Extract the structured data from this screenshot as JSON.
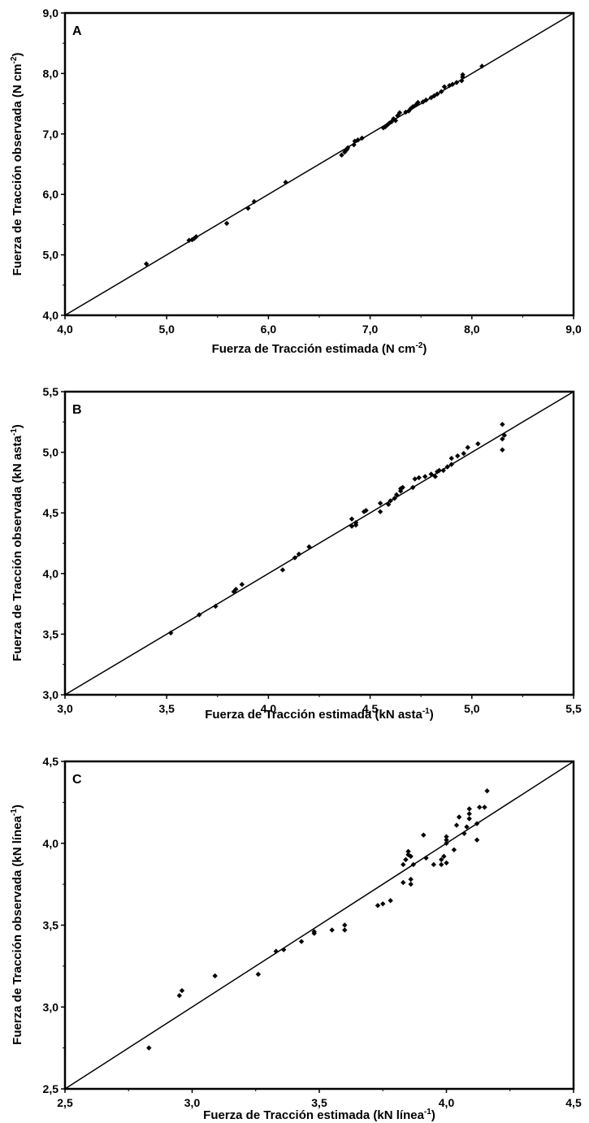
{
  "chart_data": [
    {
      "type": "scatter",
      "panel_label": "A",
      "xlabel": {
        "main": "Fuerza de Tracción estimada (N cm",
        "sup": "-2",
        "tail": ")"
      },
      "ylabel": {
        "main": "Fuerza de Tracción observada (N cm",
        "sup": "-2",
        "tail": ")"
      },
      "xlim": [
        4.0,
        9.0
      ],
      "ylim": [
        4.0,
        9.0
      ],
      "xticks": [
        "4,0",
        "5,0",
        "6,0",
        "7,0",
        "8,0",
        "9,0"
      ],
      "yticks": [
        "4,0",
        "5,0",
        "6,0",
        "7,0",
        "8,0",
        "9,0"
      ],
      "reference_line": "1:1",
      "grid": false,
      "points": [
        [
          4.8,
          4.85
        ],
        [
          5.22,
          5.24
        ],
        [
          5.25,
          5.25
        ],
        [
          5.27,
          5.27
        ],
        [
          5.29,
          5.3
        ],
        [
          5.59,
          5.52
        ],
        [
          5.8,
          5.77
        ],
        [
          5.86,
          5.88
        ],
        [
          6.17,
          6.2
        ],
        [
          6.72,
          6.65
        ],
        [
          6.75,
          6.7
        ],
        [
          6.77,
          6.74
        ],
        [
          6.78,
          6.77
        ],
        [
          6.84,
          6.82
        ],
        [
          6.85,
          6.88
        ],
        [
          6.88,
          6.9
        ],
        [
          6.92,
          6.93
        ],
        [
          7.13,
          7.1
        ],
        [
          7.15,
          7.12
        ],
        [
          7.17,
          7.15
        ],
        [
          7.19,
          7.18
        ],
        [
          7.21,
          7.2
        ],
        [
          7.23,
          7.25
        ],
        [
          7.25,
          7.22
        ],
        [
          7.27,
          7.3
        ],
        [
          7.29,
          7.35
        ],
        [
          7.35,
          7.36
        ],
        [
          7.38,
          7.38
        ],
        [
          7.4,
          7.42
        ],
        [
          7.42,
          7.45
        ],
        [
          7.45,
          7.48
        ],
        [
          7.47,
          7.52
        ],
        [
          7.52,
          7.53
        ],
        [
          7.55,
          7.56
        ],
        [
          7.6,
          7.6
        ],
        [
          7.63,
          7.63
        ],
        [
          7.66,
          7.66
        ],
        [
          7.7,
          7.7
        ],
        [
          7.73,
          7.78
        ],
        [
          7.78,
          7.8
        ],
        [
          7.81,
          7.82
        ],
        [
          7.85,
          7.85
        ],
        [
          7.9,
          7.88
        ],
        [
          7.91,
          7.94
        ],
        [
          7.91,
          7.98
        ],
        [
          8.1,
          8.12
        ]
      ]
    },
    {
      "type": "scatter",
      "panel_label": "B",
      "xlabel": {
        "main": "Fuerza de Tracción estimada (kN asta",
        "sup": "-1",
        "tail": ")"
      },
      "ylabel": {
        "main": "Fuerza de Tracción observada (kN asta",
        "sup": "-1",
        "tail": ")"
      },
      "xlim": [
        3.0,
        5.5
      ],
      "ylim": [
        3.0,
        5.5
      ],
      "xticks": [
        "3,0",
        "3,5",
        "4,0",
        "4,5",
        "5,0",
        "5,5"
      ],
      "yticks": [
        "3,0",
        "3,5",
        "4,0",
        "4,5",
        "5,0",
        "5,5"
      ],
      "reference_line": "1:1",
      "grid": false,
      "points": [
        [
          3.52,
          3.51
        ],
        [
          3.66,
          3.66
        ],
        [
          3.74,
          3.73
        ],
        [
          3.83,
          3.85
        ],
        [
          3.84,
          3.87
        ],
        [
          3.87,
          3.91
        ],
        [
          4.07,
          4.03
        ],
        [
          4.13,
          4.13
        ],
        [
          4.15,
          4.16
        ],
        [
          4.2,
          4.22
        ],
        [
          4.41,
          4.39
        ],
        [
          4.41,
          4.45
        ],
        [
          4.43,
          4.4
        ],
        [
          4.43,
          4.42
        ],
        [
          4.47,
          4.51
        ],
        [
          4.48,
          4.52
        ],
        [
          4.55,
          4.51
        ],
        [
          4.55,
          4.58
        ],
        [
          4.59,
          4.57
        ],
        [
          4.6,
          4.6
        ],
        [
          4.62,
          4.62
        ],
        [
          4.63,
          4.65
        ],
        [
          4.65,
          4.68
        ],
        [
          4.65,
          4.7
        ],
        [
          4.66,
          4.71
        ],
        [
          4.71,
          4.71
        ],
        [
          4.72,
          4.78
        ],
        [
          4.74,
          4.79
        ],
        [
          4.77,
          4.8
        ],
        [
          4.8,
          4.82
        ],
        [
          4.82,
          4.8
        ],
        [
          4.83,
          4.84
        ],
        [
          4.84,
          4.85
        ],
        [
          4.86,
          4.85
        ],
        [
          4.88,
          4.88
        ],
        [
          4.9,
          4.9
        ],
        [
          4.9,
          4.95
        ],
        [
          4.93,
          4.97
        ],
        [
          4.96,
          4.99
        ],
        [
          4.98,
          5.04
        ],
        [
          5.03,
          5.07
        ],
        [
          5.15,
          5.02
        ],
        [
          5.15,
          5.11
        ],
        [
          5.16,
          5.14
        ],
        [
          5.15,
          5.23
        ]
      ]
    },
    {
      "type": "scatter",
      "panel_label": "C",
      "xlabel": {
        "main": "Fuerza de Tracción estimada (kN línea",
        "sup": "-1",
        "tail": ")"
      },
      "ylabel": {
        "main": "Fuerza de Tracción observada (kN línea",
        "sup": "-1",
        "tail": ")"
      },
      "xlim": [
        2.5,
        4.5
      ],
      "ylim": [
        2.5,
        4.5
      ],
      "xticks": [
        "2,5",
        "3,0",
        "3,5",
        "4,0",
        "4,5"
      ],
      "yticks": [
        "2,5",
        "3,0",
        "3,5",
        "4,0",
        "4,5"
      ],
      "reference_line": "1:1",
      "grid": false,
      "points": [
        [
          2.83,
          2.75
        ],
        [
          2.95,
          3.07
        ],
        [
          2.96,
          3.1
        ],
        [
          3.09,
          3.19
        ],
        [
          3.26,
          3.2
        ],
        [
          3.33,
          3.34
        ],
        [
          3.36,
          3.35
        ],
        [
          3.43,
          3.4
        ],
        [
          3.48,
          3.45
        ],
        [
          3.48,
          3.46
        ],
        [
          3.55,
          3.47
        ],
        [
          3.6,
          3.47
        ],
        [
          3.6,
          3.5
        ],
        [
          3.73,
          3.62
        ],
        [
          3.75,
          3.63
        ],
        [
          3.78,
          3.65
        ],
        [
          3.83,
          3.76
        ],
        [
          3.83,
          3.87
        ],
        [
          3.84,
          3.9
        ],
        [
          3.85,
          3.93
        ],
        [
          3.85,
          3.95
        ],
        [
          3.86,
          3.75
        ],
        [
          3.86,
          3.78
        ],
        [
          3.86,
          3.92
        ],
        [
          3.87,
          3.87
        ],
        [
          3.91,
          4.05
        ],
        [
          3.92,
          3.91
        ],
        [
          3.95,
          3.87
        ],
        [
          3.98,
          3.87
        ],
        [
          3.98,
          3.9
        ],
        [
          3.99,
          3.92
        ],
        [
          4.0,
          3.88
        ],
        [
          4.0,
          4.0
        ],
        [
          4.0,
          4.02
        ],
        [
          4.0,
          4.04
        ],
        [
          4.03,
          3.96
        ],
        [
          4.04,
          4.11
        ],
        [
          4.05,
          4.16
        ],
        [
          4.07,
          4.06
        ],
        [
          4.08,
          4.1
        ],
        [
          4.09,
          4.15
        ],
        [
          4.09,
          4.18
        ],
        [
          4.09,
          4.21
        ],
        [
          4.12,
          4.02
        ],
        [
          4.12,
          4.12
        ],
        [
          4.13,
          4.22
        ],
        [
          4.15,
          4.22
        ],
        [
          4.16,
          4.32
        ]
      ]
    }
  ]
}
